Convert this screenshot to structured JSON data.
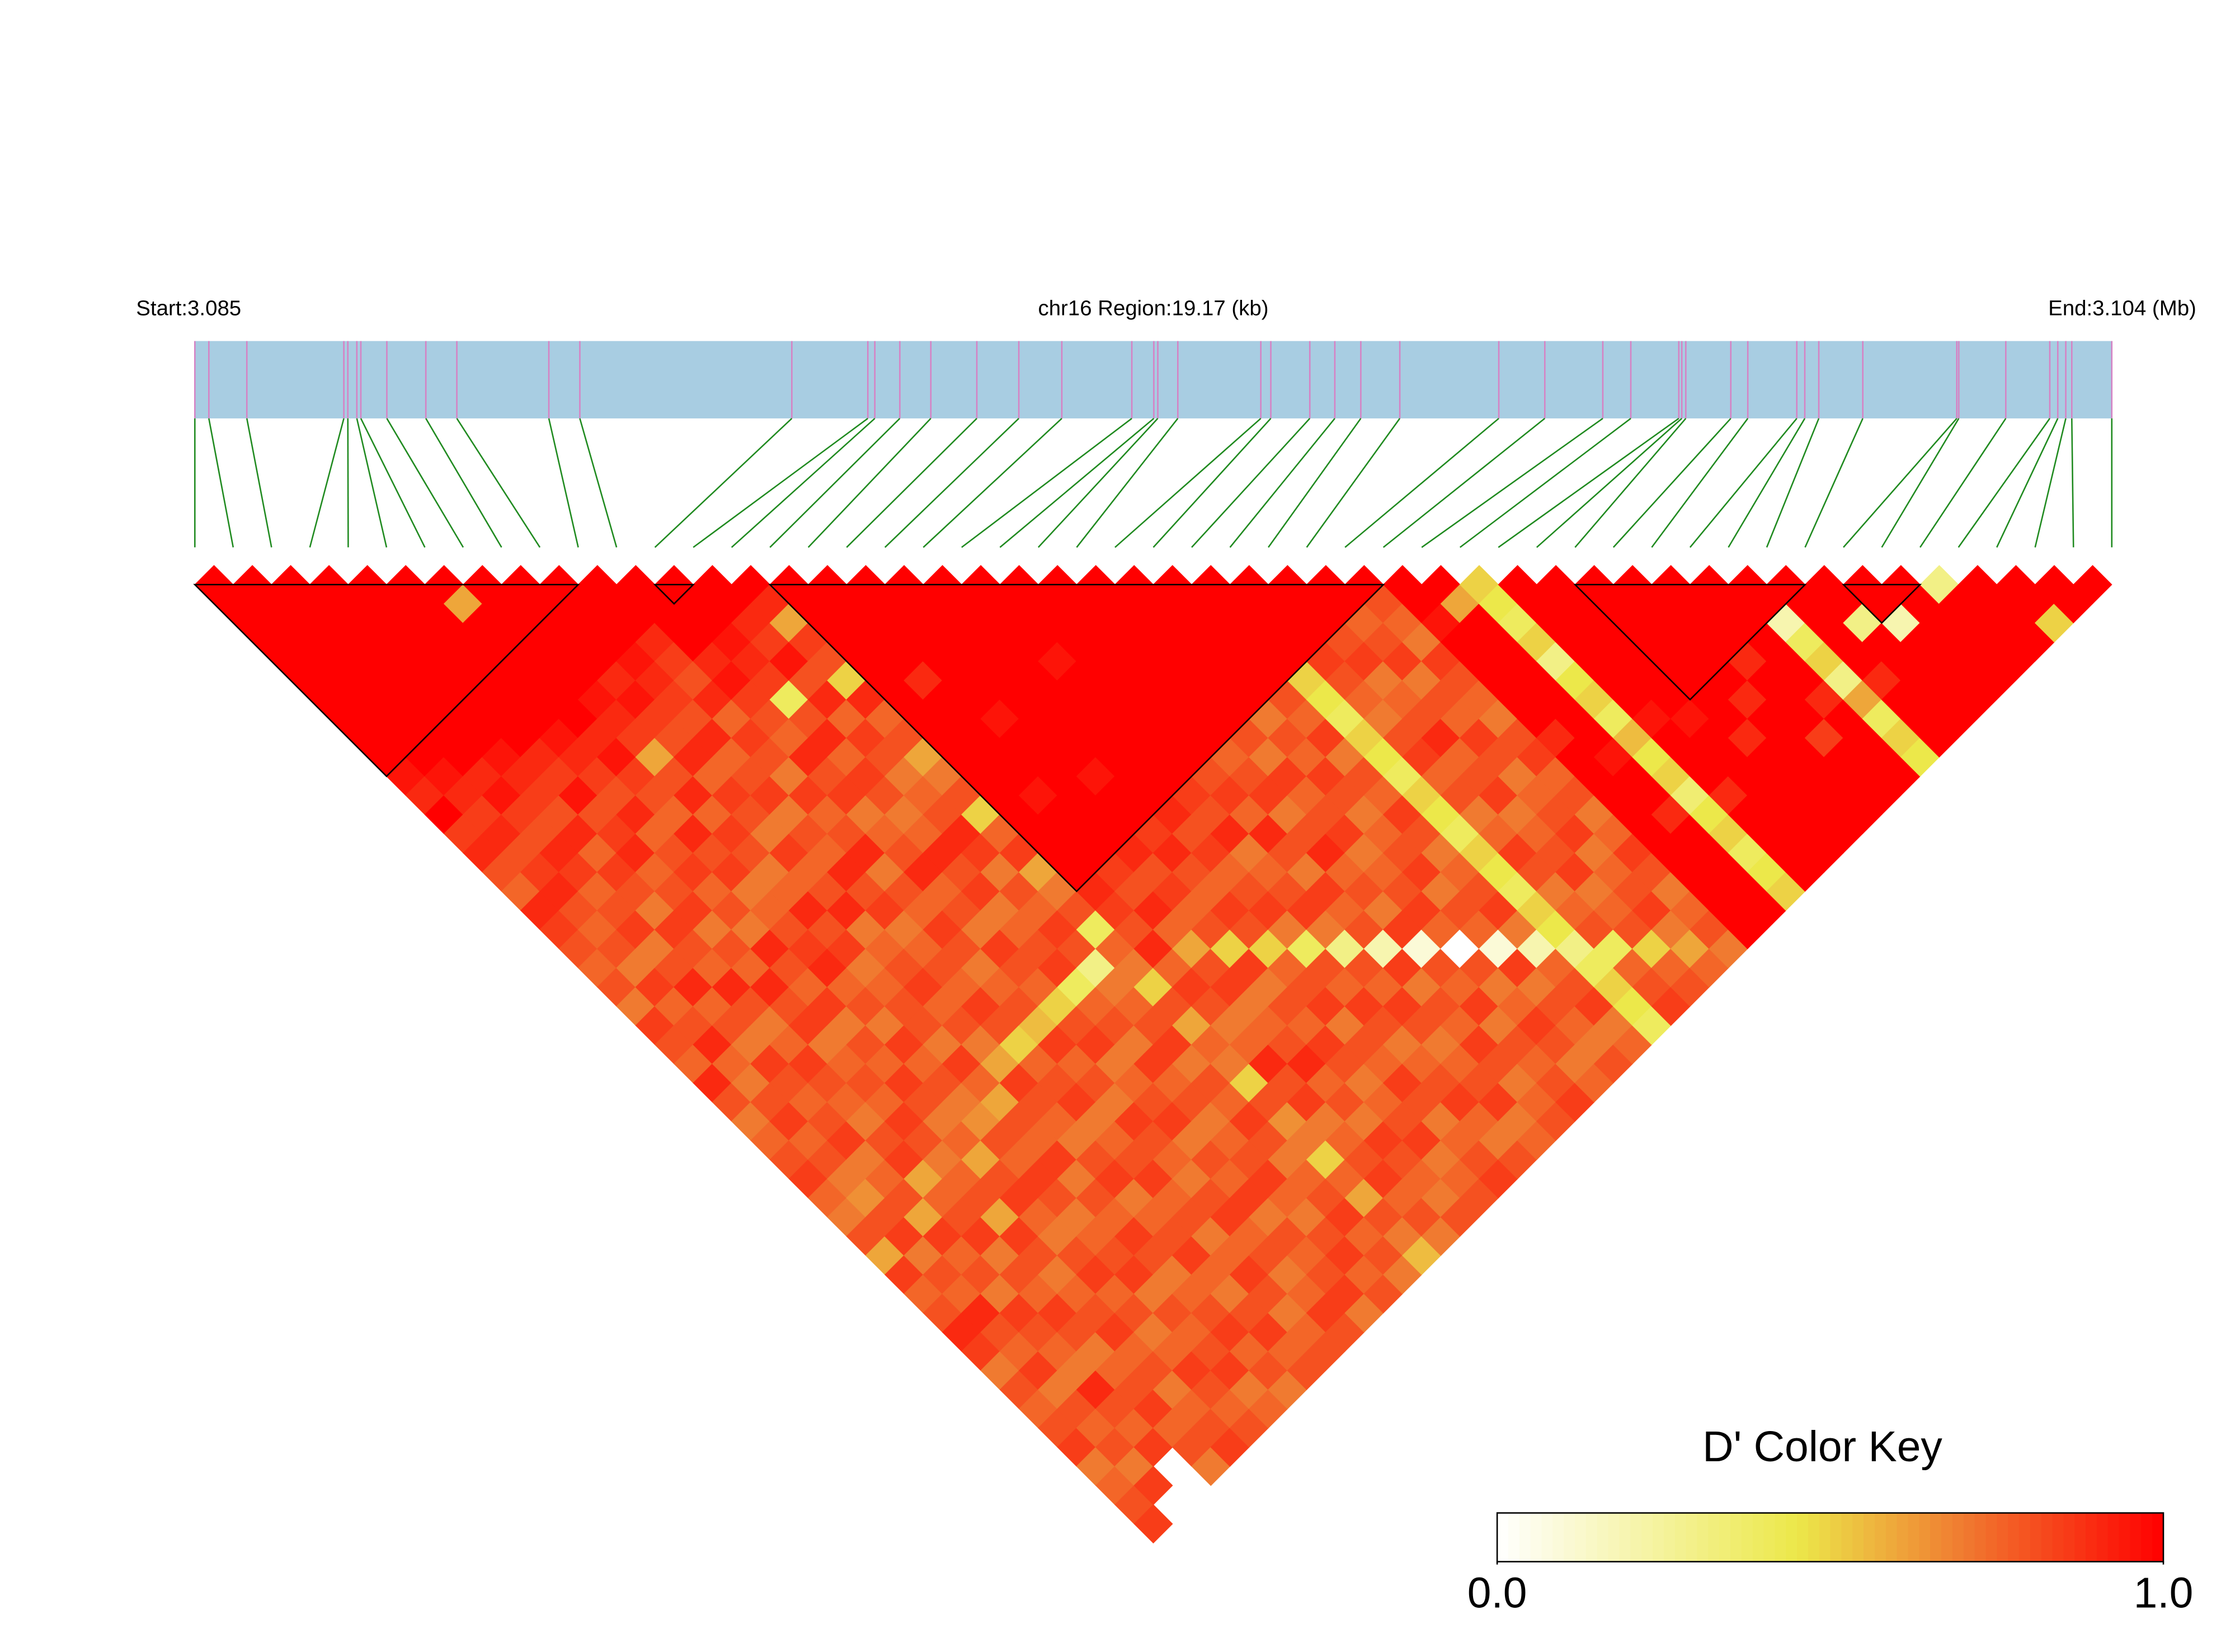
{
  "chart_data": {
    "type": "ld_heatmap",
    "start_label": "Start:3.085",
    "region_label": "chr16 Region:19.17 (kb)",
    "end_label": "End:3.104 (Mb)",
    "xlim": [
      0,
      19.17
    ],
    "snp_positions_kb": [
      0,
      0.14,
      0.52,
      1.49,
      1.53,
      1.62,
      1.66,
      1.92,
      2.31,
      2.62,
      3.54,
      3.85,
      5.97,
      6.73,
      6.8,
      7.05,
      7.36,
      7.82,
      8.24,
      8.67,
      9.37,
      9.59,
      9.63,
      9.83,
      10.66,
      10.76,
      11.15,
      11.4,
      11.66,
      12.05,
      13.04,
      13.5,
      14.08,
      14.36,
      14.84,
      14.87,
      14.91,
      15.36,
      15.53,
      16.02,
      16.1,
      16.24,
      16.68,
      17.62,
      17.64,
      18.11,
      18.55,
      18.63,
      18.71,
      18.77,
      19.17
    ],
    "region_color": "#a8cde2",
    "snp_line_color": "#d682c4",
    "connector_color": "#1f8a1f",
    "blocks": [
      [
        0,
        10
      ],
      [
        12,
        13
      ],
      [
        15,
        31
      ],
      [
        36,
        42
      ],
      [
        43,
        45
      ]
    ],
    "dprime": [
      [
        1,
        1,
        1,
        1,
        1,
        1,
        1,
        1,
        1,
        1,
        0.95,
        0.9,
        1,
        0.85,
        0.9,
        0.8,
        0.75,
        0.9,
        0.85,
        0.8,
        0.75,
        0.8,
        0.7,
        0.85,
        0.8,
        0.75,
        0.9,
        0.8,
        0.7,
        0.75,
        0.8,
        0.85,
        0.75,
        0.7,
        0.8,
        0.6,
        0.85,
        0.75,
        0.8,
        0.9,
        0.85,
        0.7,
        0.8,
        0.75,
        0.8,
        0.85,
        0.7,
        0.75,
        0.8,
        0.85
      ],
      [
        1,
        1,
        1,
        1,
        1,
        1,
        1,
        1,
        1,
        1,
        0.95,
        0.9,
        0.85,
        0.9,
        0.8,
        0.85,
        0.9,
        0.8,
        0.75,
        0.8,
        0.7,
        0.85,
        0.75,
        0.8,
        0.9,
        0.75,
        0.7,
        0.8,
        0.85,
        0.75,
        0.8,
        0.7,
        0.65,
        0.8,
        0.85,
        0.7,
        0.8,
        0.75,
        0.9,
        0.8,
        0.75,
        0.85,
        0.7,
        0.8,
        0.75,
        0.8,
        0.7,
        0.85
      ],
      [
        1,
        1,
        1,
        1,
        1,
        1,
        1,
        1,
        1,
        1,
        0.9,
        0.95,
        0.85,
        0.8,
        0.9,
        0.85,
        0.75,
        0.8,
        0.85,
        0.7,
        0.8,
        0.9,
        0.75,
        0.8,
        0.7,
        0.85,
        0.8,
        0.75,
        0.8,
        0.85,
        0.7,
        0.75,
        0.8,
        0.6,
        0.85,
        0.75,
        0.8,
        0.7,
        0.85,
        0.8,
        0.75,
        0.7,
        0.9,
        0.8,
        0.75,
        0.85
      ],
      [
        1,
        1,
        1,
        1,
        1,
        1,
        1,
        1,
        1,
        0.95,
        0.9,
        0.85,
        0.8,
        0.9,
        0.75,
        0.85,
        0.8,
        0.7,
        0.85,
        0.8,
        0.75,
        0.9,
        0.8,
        0.7,
        0.75,
        0.85,
        0.8,
        0.75,
        0.7,
        0.8,
        0.85,
        0.6,
        0.75,
        0.8,
        0.85,
        0.7,
        0.8,
        0.75,
        0.85,
        0.8,
        0.7,
        0.75,
        0.8,
        0.85,
        0.75,
        0.8,
        0.7
      ],
      [
        1,
        1,
        1,
        1,
        1,
        1,
        1,
        1,
        1,
        0.9,
        0.85,
        0.95,
        0.8,
        0.85,
        0.9,
        0.75,
        0.8,
        0.85,
        0.7,
        0.8,
        0.75,
        0.9,
        0.8,
        0.85,
        0.7,
        0.75,
        0.8,
        0.75,
        0.85,
        0.8,
        0.7,
        0.75,
        0.8,
        0.6,
        0.85,
        0.8,
        0.7,
        0.75,
        0.8,
        0.85,
        0.75,
        0.8,
        0.7,
        0.75,
        0.8,
        0.85
      ],
      [
        1,
        1,
        1,
        1,
        1,
        1,
        1,
        1,
        0.95,
        0.9,
        0.85,
        0.8,
        0.9,
        0.75,
        0.8,
        0.85,
        0.75,
        0.8,
        0.7,
        0.9,
        0.8,
        0.75,
        0.85,
        0.7,
        0.8,
        0.75,
        0.85,
        0.8,
        0.7,
        0.75,
        0.6,
        0.8,
        0.85,
        0.75,
        0.7,
        0.8,
        0.85,
        0.75,
        0.8,
        0.7,
        0.75,
        0.85,
        0.8,
        0.75,
        0.8
      ],
      [
        1,
        0.6,
        1,
        1,
        1,
        1,
        1,
        1,
        0.9,
        0.95,
        0.85,
        0.8,
        0.75,
        0.9,
        0.8,
        0.85,
        0.7,
        0.75,
        0.8,
        0.85,
        0.9,
        0.75,
        0.8,
        0.7,
        0.85,
        0.75,
        0.8,
        0.7,
        0.65,
        0.8,
        0.75,
        0.85,
        0.8,
        0.7,
        0.75,
        0.8,
        0.85,
        0.7,
        0.8,
        0.75,
        0.8,
        0.85,
        0.7,
        0.75
      ],
      [
        1,
        1,
        1,
        1,
        1,
        1,
        0.95,
        0.9,
        0.85,
        0.6,
        0.8,
        0.9,
        0.75,
        0.85,
        0.8,
        0.7,
        0.75,
        0.9,
        0.8,
        0.85,
        0.7,
        0.75,
        0.8,
        0.8,
        0.7,
        0.85,
        0.75,
        0.6,
        0.8,
        0.75,
        0.85,
        0.7,
        0.8,
        0.75,
        0.85,
        0.8,
        0.7,
        0.75,
        0.8,
        0.85,
        0.75,
        0.8,
        0.7
      ],
      [
        1,
        1,
        1,
        1,
        1,
        0.9,
        0.95,
        0.85,
        0.8,
        0.9,
        0.75,
        0.85,
        0.8,
        0.7,
        0.85,
        0.75,
        0.8,
        0.9,
        0.7,
        0.75,
        0.8,
        0.85,
        0.75,
        0.8,
        0.7,
        0.6,
        0.85,
        0.8,
        0.75,
        0.7,
        0.8,
        0.85,
        0.7,
        0.75,
        0.8,
        0.85,
        0.75,
        0.7,
        0.8,
        0.85,
        0.75,
        0.8
      ],
      [
        1,
        1,
        1,
        1,
        0.95,
        0.9,
        0.85,
        0.8,
        0.9,
        0.75,
        0.8,
        0.85,
        0.7,
        0.8,
        0.75,
        0.9,
        0.8,
        0.85,
        0.7,
        0.75,
        0.8,
        0.75,
        0.85,
        0.8,
        0.5,
        0.75,
        0.8,
        0.85,
        0.7,
        0.75,
        0.8,
        0.85,
        0.75,
        0.8,
        0.7,
        0.75,
        0.85,
        0.8,
        0.7,
        0.75,
        0.8
      ],
      [
        1,
        1,
        1,
        0.9,
        0.85,
        0.8,
        0.9,
        0.75,
        0.85,
        0.8,
        0.7,
        0.85,
        0.75,
        0.8,
        0.9,
        0.7,
        0.8,
        0.75,
        0.85,
        0.8,
        0.7,
        0.75,
        0.8,
        0.55,
        0.85,
        0.75,
        0.8,
        0.7,
        0.85,
        0.8,
        0.75,
        0.7,
        0.8,
        0.85,
        0.75,
        0.8,
        0.7,
        0.75,
        0.85,
        0.8
      ],
      [
        1,
        1,
        1,
        1,
        0.9,
        0.95,
        0.85,
        0.8,
        0.75,
        0.9,
        0.8,
        0.85,
        0.7,
        0.75,
        0.8,
        0.9,
        0.75,
        0.8,
        0.7,
        0.85,
        0.8,
        0.75,
        0.5,
        0.8,
        0.85,
        0.7,
        0.75,
        0.8,
        0.85,
        0.7,
        0.8,
        0.75,
        0.85,
        0.7,
        0.8,
        0.75,
        0.8,
        0.85,
        0.7
      ],
      [
        1,
        1,
        1,
        0.95,
        0.9,
        0.85,
        0.4,
        0.8,
        0.9,
        0.75,
        0.85,
        0.8,
        0.7,
        0.75,
        0.9,
        0.8,
        0.85,
        0.7,
        0.75,
        0.8,
        0.85,
        0.4,
        0.75,
        0.8,
        0.7,
        0.85,
        0.75,
        0.8,
        0.7,
        0.75,
        0.8,
        0.85,
        0.75,
        0.7,
        0.8,
        0.85,
        0.75,
        0.8
      ],
      [
        1,
        1,
        0.9,
        0.85,
        0.95,
        0.8,
        0.9,
        0.75,
        0.85,
        0.8,
        0.7,
        0.75,
        0.8,
        0.9,
        0.85,
        0.7,
        0.8,
        0.75,
        0.85,
        0.8,
        0.3,
        0.7,
        0.75,
        0.8,
        0.85,
        0.7,
        0.8,
        0.75,
        0.85,
        0.8,
        0.7,
        0.75,
        0.8,
        0.85,
        0.75,
        0.8,
        0.7
      ],
      [
        1,
        0.9,
        0.6,
        0.85,
        0.8,
        0.5,
        0.9,
        0.75,
        0.8,
        0.6,
        0.7,
        0.8,
        0.5,
        0.75,
        0.85,
        0.6,
        0.7,
        0.8,
        0.4,
        0.75,
        0.7,
        0.5,
        0.8,
        0.6,
        0.75,
        0.7,
        0.5,
        0.8,
        0.65,
        0.7,
        0.5,
        0.75,
        0.6,
        0.8,
        0.7,
        0.55
      ],
      [
        1,
        1,
        1,
        1,
        1,
        1,
        1,
        1,
        1,
        1,
        1,
        1,
        1,
        1,
        1,
        1,
        0.9,
        0.85,
        0.8,
        0.9,
        0.75,
        0.85,
        0.8,
        0.7,
        0.75,
        0.9,
        0.8,
        0.85,
        0.7,
        0.75,
        0.8,
        0.85,
        0.75,
        0.8,
        0.7
      ],
      [
        1,
        1,
        1,
        1,
        1,
        0.9,
        1,
        1,
        1,
        1,
        1,
        0.95,
        1,
        1,
        1,
        0.85,
        0.8,
        0.9,
        0.75,
        0.6,
        0.8,
        0.85,
        0.7,
        0.75,
        0.8,
        0.9,
        0.75,
        0.8,
        0.7,
        0.85,
        0.8,
        0.75,
        0.7,
        0.8
      ],
      [
        1,
        1,
        1,
        1,
        1,
        1,
        1,
        0.95,
        1,
        1,
        1,
        1,
        1,
        1,
        0.9,
        0.8,
        0.85,
        0.75,
        0.8,
        0.5,
        0.85,
        0.7,
        0.8,
        0.75,
        0.85,
        0.8,
        0.7,
        0.75,
        0.8,
        0.85,
        0.7,
        0.75,
        0.8
      ],
      [
        1,
        1,
        1,
        1,
        1,
        1,
        1,
        1,
        1,
        1,
        0.95,
        1,
        1,
        0.85,
        0.9,
        0.8,
        0.75,
        0.85,
        0.8,
        0.5,
        0.75,
        0.8,
        0.85,
        0.7,
        0.8,
        0.75,
        0.85,
        0.8,
        0.7,
        0.75,
        0.8,
        0.85
      ],
      [
        1,
        1,
        1,
        1,
        1,
        1,
        1,
        1,
        1,
        1,
        1,
        1,
        0.9,
        0.8,
        0.85,
        0.75,
        0.8,
        0.85,
        0.7,
        0.4,
        0.8,
        0.75,
        0.85,
        0.8,
        0.7,
        0.75,
        0.8,
        0.85,
        0.75,
        0.7,
        0.8
      ],
      [
        1,
        1,
        1,
        1,
        0.95,
        1,
        1,
        1,
        1,
        1,
        1,
        0.85,
        0.8,
        0.9,
        0.7,
        0.75,
        0.8,
        0.85,
        0.7,
        0.3,
        0.8,
        0.75,
        0.85,
        0.8,
        0.7,
        0.75,
        0.8,
        0.85,
        0.7,
        0.75
      ],
      [
        1,
        1,
        1,
        1,
        1,
        1,
        1,
        1,
        1,
        1,
        0.8,
        0.85,
        0.75,
        0.9,
        0.8,
        0.7,
        0.85,
        0.75,
        0.8,
        0.2,
        0.85,
        0.7,
        0.8,
        0.75,
        0.85,
        0.8,
        0.7,
        0.75,
        0.8
      ],
      [
        1,
        1,
        1,
        1,
        1,
        1,
        1,
        1,
        1,
        0.75,
        0.8,
        0.85,
        0.7,
        0.8,
        0.9,
        0.75,
        0.8,
        0.7,
        0.85,
        0.1,
        0.8,
        0.75,
        0.85,
        0.7,
        0.8,
        0.75,
        0.8,
        0.85
      ],
      [
        1,
        1,
        1,
        1,
        1,
        1,
        1,
        1,
        0.8,
        0.7,
        0.85,
        0.75,
        0.8,
        0.85,
        0.7,
        0.75,
        0.8,
        0.85,
        0.75,
        0,
        0.8,
        0.7,
        0.75,
        0.85,
        0.8,
        0.7,
        0.75
      ],
      [
        1,
        1,
        1,
        1,
        1,
        1,
        1,
        0.7,
        0.8,
        0.75,
        0.85,
        0.8,
        0.7,
        0.75,
        0.8,
        0.85,
        0.7,
        0.8,
        0.75,
        0.1,
        0.85,
        0.7,
        0.8,
        0.75,
        0.7,
        0.8
      ],
      [
        1,
        1,
        1,
        1,
        1,
        1,
        0.8,
        0.75,
        0.85,
        0.7,
        0.8,
        0.75,
        0.85,
        0.8,
        0.7,
        0.75,
        0.8,
        0.85,
        0.7,
        0.2,
        0.75,
        0.8,
        0.85,
        0.7,
        0.75
      ],
      [
        1,
        1,
        1,
        1,
        1,
        0.5,
        0.45,
        0.4,
        0.5,
        0.45,
        0.4,
        0.5,
        0.45,
        0.4,
        0.5,
        0.45,
        0.4,
        0.5,
        0.45,
        0.3,
        0.4,
        0.5,
        0.45,
        0.4
      ],
      [
        1,
        1,
        1,
        1,
        0.85,
        0.8,
        0.75,
        0.7,
        0.8,
        0.85,
        0.75,
        0.8,
        0.7,
        0.75,
        0.85,
        0.8,
        0.7,
        0.75,
        0.8,
        0.4,
        0.75,
        0.8,
        0.85
      ],
      [
        1,
        1,
        1,
        0.8,
        0.85,
        0.7,
        0.75,
        0.8,
        0.9,
        0.75,
        0.8,
        0.85,
        0.7,
        0.75,
        0.8,
        0.85,
        0.7,
        0.75,
        0.8,
        0.5,
        0.75,
        0.8
      ],
      [
        1,
        1,
        0.75,
        0.8,
        0.85,
        0.7,
        0.8,
        0.75,
        0.85,
        0.8,
        0.7,
        0.75,
        0.8,
        0.85,
        0.7,
        0.75,
        0.8,
        0.85,
        0.7,
        0.6,
        0.75
      ],
      [
        1,
        0.8,
        0.75,
        0.7,
        0.85,
        0.8,
        0.75,
        0.7,
        0.8,
        0.85,
        0.75,
        0.8,
        0.7,
        0.75,
        0.85,
        0.8,
        0.7,
        0.75,
        0.8,
        0.7
      ],
      [
        1,
        1,
        0.95,
        1,
        1,
        1,
        1,
        1,
        0.9,
        1,
        1,
        1,
        1,
        1,
        1,
        1,
        1,
        1,
        1
      ],
      [
        1,
        0.6,
        1,
        1,
        1,
        1,
        1,
        1,
        1,
        0.95,
        1,
        1,
        0.9,
        1,
        1,
        1,
        1,
        1
      ],
      [
        0.5,
        0.45,
        0.4,
        0.5,
        0.3,
        0.45,
        0.5,
        0.4,
        0.55,
        0.45,
        0.5,
        0.35,
        0.45,
        0.5,
        0.4,
        0.45,
        0.5
      ],
      [
        1,
        1,
        1,
        1,
        1,
        1,
        1,
        0.95,
        1,
        1,
        1,
        0.9,
        1,
        1,
        1,
        1
      ],
      [
        1,
        1,
        1,
        1,
        1,
        1,
        1,
        0.95,
        1,
        1,
        1,
        1,
        1,
        1,
        1
      ],
      [
        1,
        1,
        1,
        1,
        1,
        1,
        1,
        1,
        0.9,
        1,
        1,
        1,
        1,
        1
      ],
      [
        1,
        1,
        1,
        1,
        1,
        1,
        0.9,
        1,
        1,
        1,
        1,
        1,
        1
      ],
      [
        1,
        1,
        1,
        1,
        0.9,
        1,
        1,
        1,
        0.85,
        1,
        1,
        1
      ],
      [
        1,
        1,
        1,
        1,
        1,
        1,
        0.9,
        1,
        1,
        1,
        1
      ],
      [
        1,
        1,
        0.2,
        0.4,
        0.5,
        0.3,
        0.6,
        0.4,
        0.5,
        0.45
      ],
      [
        1,
        1,
        1,
        1,
        1,
        0.9,
        1,
        1,
        1
      ],
      [
        1,
        1,
        0.3,
        1,
        1,
        1,
        1,
        1
      ],
      [
        1,
        1,
        0.2,
        1,
        1,
        1,
        1
      ],
      [
        1,
        1,
        1,
        1,
        1,
        1
      ],
      [
        0.3,
        1,
        1,
        1,
        1
      ],
      [
        1,
        1,
        1,
        1
      ],
      [
        1,
        1,
        0.5
      ],
      [
        1,
        1
      ],
      [
        1
      ]
    ],
    "color_key": {
      "title": "D' Color Key",
      "colorscale": [
        [
          0,
          "#ffffff"
        ],
        [
          0.45,
          "#ece84a"
        ],
        [
          0.7,
          "#f07a30"
        ],
        [
          1,
          "#ff0000"
        ]
      ],
      "ticks": [
        {
          "value": 0,
          "label": "0.0"
        },
        {
          "value": 1,
          "label": "1.0"
        }
      ]
    },
    "block_color": "#000000"
  }
}
